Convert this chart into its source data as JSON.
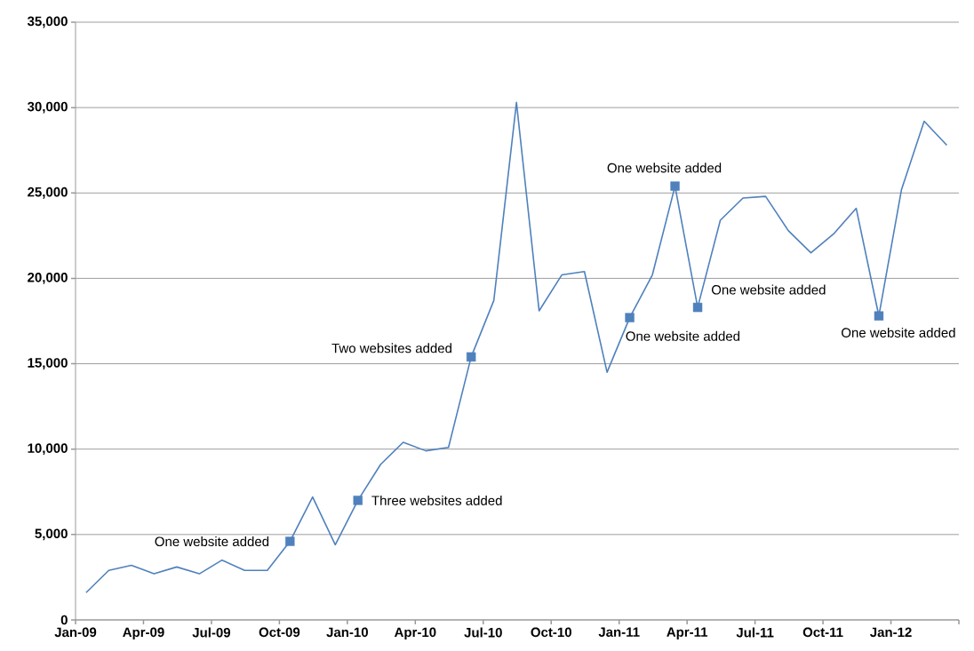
{
  "chart_data": {
    "type": "line",
    "x": [
      "2009-01-15",
      "2009-02-15",
      "2009-03-15",
      "2009-04-15",
      "2009-05-15",
      "2009-06-15",
      "2009-07-15",
      "2009-08-15",
      "2009-09-15",
      "2009-10-15",
      "2009-11-15",
      "2009-12-15",
      "2010-01-15",
      "2010-02-15",
      "2010-03-15",
      "2010-04-15",
      "2010-05-15",
      "2010-06-15",
      "2010-07-15",
      "2010-08-15",
      "2010-09-15",
      "2010-10-15",
      "2010-11-15",
      "2010-12-15",
      "2011-01-15",
      "2011-02-15",
      "2011-03-15",
      "2011-04-15",
      "2011-05-15",
      "2011-06-15",
      "2011-07-15",
      "2011-08-15",
      "2011-09-15",
      "2011-10-15",
      "2011-11-15",
      "2011-12-15",
      "2012-01-15",
      "2012-02-15",
      "2012-03-15"
    ],
    "series": [
      {
        "color": "#4f81bd",
        "marker": "none",
        "values": [
          1600,
          2900,
          3200,
          2700,
          3100,
          2700,
          3500,
          2900,
          2900,
          4600,
          7200,
          4400,
          7000,
          9100,
          10400,
          9900,
          10100,
          15400,
          18700,
          30300,
          18100,
          20200,
          20400,
          14500,
          17700,
          20200,
          25400,
          18300,
          23400,
          24700,
          24800,
          22800,
          21500,
          22600,
          24100,
          17800,
          25200,
          29200,
          27800
        ]
      },
      {
        "type": "scatter",
        "color": "#4f81bd",
        "marker": "square",
        "x": [
          "2009-10-15",
          "2010-01-15",
          "2010-06-15",
          "2011-01-15",
          "2011-03-15",
          "2011-04-15",
          "2011-12-15"
        ],
        "values": [
          4600,
          7000,
          15400,
          17700,
          25400,
          18300,
          17800
        ]
      }
    ],
    "annotations": [
      {
        "text": "One website added",
        "x": "2009-10-15",
        "y": 4600
      },
      {
        "text": "Three websites added",
        "x": "2010-01-15",
        "y": 7000
      },
      {
        "text": "Two websites added",
        "x": "2010-06-15",
        "y": 15400
      },
      {
        "text": "One website added",
        "x": "2011-01-15",
        "y": 17700
      },
      {
        "text": "One website added",
        "x": "2011-03-15",
        "y": 25400
      },
      {
        "text": "One website added",
        "x": "2011-04-15",
        "y": 18300
      },
      {
        "text": "One website added",
        "x": "2011-12-15",
        "y": 17800
      }
    ],
    "xlim": [
      "2009-01-01",
      "2012-04-01"
    ],
    "xticks": [
      {
        "value": "2009-01-01",
        "label": "Jan-09"
      },
      {
        "value": "2009-04-01",
        "label": "Apr-09"
      },
      {
        "value": "2009-07-01",
        "label": "Jul-09"
      },
      {
        "value": "2009-10-01",
        "label": "Oct-09"
      },
      {
        "value": "2010-01-01",
        "label": "Jan-10"
      },
      {
        "value": "2010-04-01",
        "label": "Apr-10"
      },
      {
        "value": "2010-07-01",
        "label": "Jul-10"
      },
      {
        "value": "2010-10-01",
        "label": "Oct-10"
      },
      {
        "value": "2011-01-01",
        "label": "Jan-11"
      },
      {
        "value": "2011-04-01",
        "label": "Apr-11"
      },
      {
        "value": "2011-07-01",
        "label": "Jul-11"
      },
      {
        "value": "2011-10-01",
        "label": "Oct-11"
      },
      {
        "value": "2012-01-01",
        "label": "Jan-12"
      },
      {
        "value": "2012-04-01",
        "label": null
      }
    ],
    "ylim": [
      0,
      35000
    ],
    "yticks": [
      {
        "value": 0,
        "label": "0"
      },
      {
        "value": 5000,
        "label": "5,000"
      },
      {
        "value": 10000,
        "label": "10,000"
      },
      {
        "value": 15000,
        "label": "15,000"
      },
      {
        "value": 20000,
        "label": "20,000"
      },
      {
        "value": 25000,
        "label": "25,000"
      },
      {
        "value": 30000,
        "label": "30,000"
      },
      {
        "value": 35000,
        "label": "35,000"
      }
    ],
    "grid": "y"
  }
}
